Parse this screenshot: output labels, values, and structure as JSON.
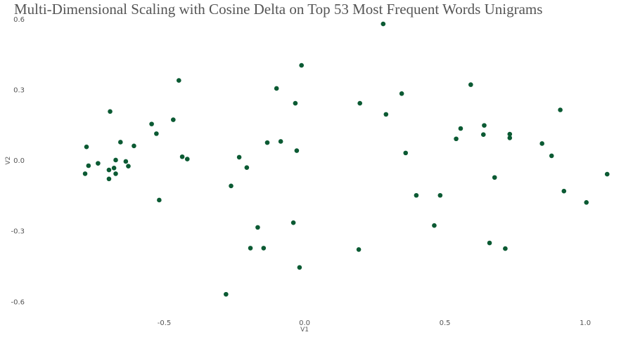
{
  "title": "Multi-Dimensional Scaling with Cosine Delta on Top 53 Most Frequent Words Unigrams",
  "chart_data": {
    "type": "scatter",
    "title": "Multi-Dimensional Scaling with Cosine Delta on Top 53 Most Frequent Words Unigrams",
    "xlabel": "V1",
    "ylabel": "V2",
    "xlim": [
      -0.98,
      1.14
    ],
    "ylim": [
      -0.66,
      0.61
    ],
    "x_ticks": [
      -0.5,
      0.0,
      0.5,
      1.0
    ],
    "x_tick_labels": [
      "-0.5",
      "0.0",
      "0.5",
      "1.0"
    ],
    "y_ticks": [
      -0.6,
      -0.3,
      0.0,
      0.3,
      0.6
    ],
    "y_tick_labels": [
      "-0.6",
      "-0.3",
      "0.0",
      "0.3",
      "0.6"
    ],
    "grid": false,
    "legend": "none",
    "point_color": "#0b5a33",
    "points": [
      {
        "x": -0.777,
        "y": 0.058
      },
      {
        "x": -0.77,
        "y": -0.022
      },
      {
        "x": -0.782,
        "y": -0.056
      },
      {
        "x": -0.736,
        "y": -0.012
      },
      {
        "x": -0.693,
        "y": 0.208
      },
      {
        "x": -0.697,
        "y": -0.04
      },
      {
        "x": -0.697,
        "y": -0.078
      },
      {
        "x": -0.679,
        "y": -0.032
      },
      {
        "x": -0.673,
        "y": 0.002
      },
      {
        "x": -0.673,
        "y": -0.056
      },
      {
        "x": -0.656,
        "y": 0.078
      },
      {
        "x": -0.637,
        "y": -0.004
      },
      {
        "x": -0.628,
        "y": -0.024
      },
      {
        "x": -0.608,
        "y": 0.062
      },
      {
        "x": -0.545,
        "y": 0.155
      },
      {
        "x": -0.528,
        "y": 0.114
      },
      {
        "x": -0.518,
        "y": -0.168
      },
      {
        "x": -0.468,
        "y": 0.173
      },
      {
        "x": -0.448,
        "y": 0.34
      },
      {
        "x": -0.436,
        "y": 0.016
      },
      {
        "x": -0.418,
        "y": 0.006
      },
      {
        "x": -0.28,
        "y": -0.568
      },
      {
        "x": -0.262,
        "y": -0.108
      },
      {
        "x": -0.233,
        "y": 0.014
      },
      {
        "x": -0.206,
        "y": -0.03
      },
      {
        "x": -0.193,
        "y": -0.372
      },
      {
        "x": -0.167,
        "y": -0.284
      },
      {
        "x": -0.146,
        "y": -0.372
      },
      {
        "x": -0.133,
        "y": 0.076
      },
      {
        "x": -0.1,
        "y": 0.306
      },
      {
        "x": -0.085,
        "y": 0.081
      },
      {
        "x": -0.04,
        "y": -0.264
      },
      {
        "x": -0.033,
        "y": 0.243
      },
      {
        "x": -0.028,
        "y": 0.042
      },
      {
        "x": -0.018,
        "y": -0.454
      },
      {
        "x": -0.011,
        "y": 0.404
      },
      {
        "x": 0.193,
        "y": -0.378
      },
      {
        "x": 0.197,
        "y": 0.243
      },
      {
        "x": 0.28,
        "y": 0.58
      },
      {
        "x": 0.29,
        "y": 0.196
      },
      {
        "x": 0.346,
        "y": 0.284
      },
      {
        "x": 0.36,
        "y": 0.032
      },
      {
        "x": 0.398,
        "y": -0.148
      },
      {
        "x": 0.462,
        "y": -0.276
      },
      {
        "x": 0.483,
        "y": -0.148
      },
      {
        "x": 0.54,
        "y": 0.092
      },
      {
        "x": 0.556,
        "y": 0.136
      },
      {
        "x": 0.592,
        "y": 0.322
      },
      {
        "x": 0.637,
        "y": 0.11
      },
      {
        "x": 0.64,
        "y": 0.149
      },
      {
        "x": 0.659,
        "y": -0.35
      },
      {
        "x": 0.677,
        "y": -0.072
      },
      {
        "x": 0.715,
        "y": -0.374
      },
      {
        "x": 0.731,
        "y": 0.112
      },
      {
        "x": 0.731,
        "y": 0.096
      },
      {
        "x": 0.846,
        "y": 0.072
      },
      {
        "x": 0.88,
        "y": 0.02
      },
      {
        "x": 0.911,
        "y": 0.215
      },
      {
        "x": 0.924,
        "y": -0.13
      },
      {
        "x": 1.004,
        "y": -0.178
      },
      {
        "x": 1.078,
        "y": -0.058
      }
    ]
  }
}
